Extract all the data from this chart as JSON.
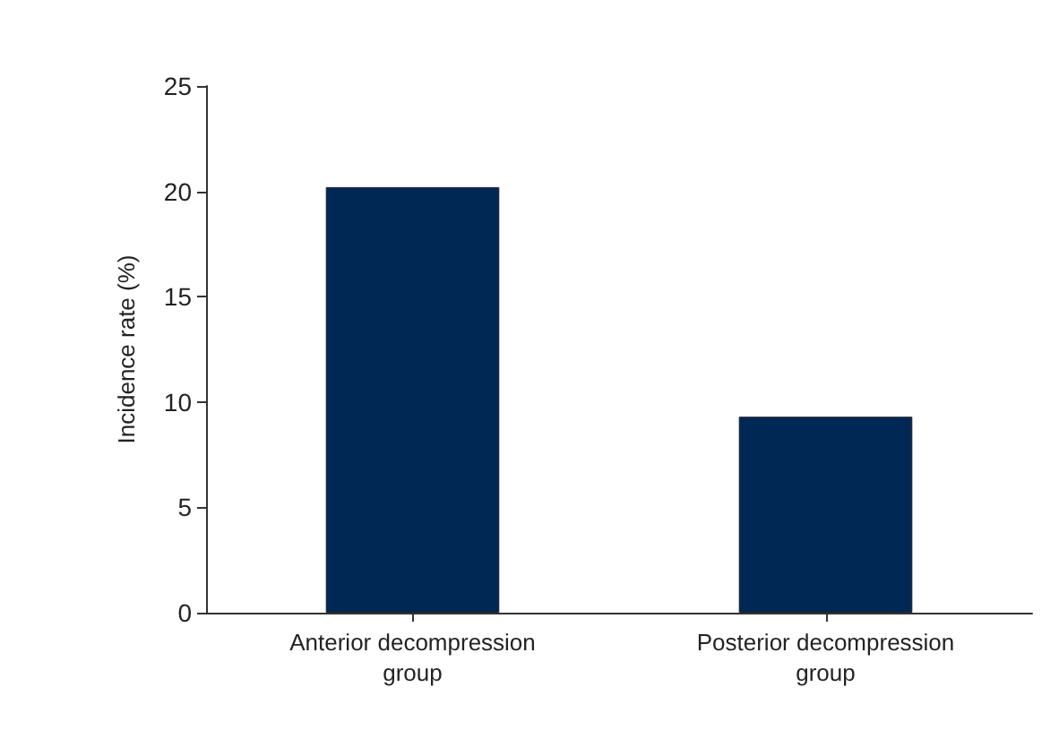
{
  "chart_data": {
    "type": "bar",
    "ylabel": "Incidence rate (%)",
    "categories": [
      "Anterior decompression\ngroup",
      "Posterior decompression\ngroup"
    ],
    "values": [
      20.2,
      9.3
    ],
    "color": "#002855",
    "ylim": [
      0,
      25
    ],
    "yticks": [
      0,
      5,
      10,
      15,
      20,
      25
    ],
    "grid": false
  }
}
